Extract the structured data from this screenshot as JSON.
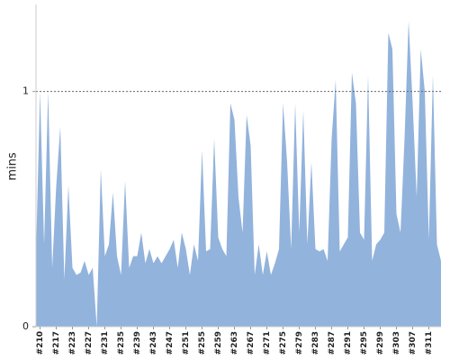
{
  "chart_data": {
    "type": "area",
    "y_label": "mins",
    "categories": [
      null,
      "#210",
      null,
      null,
      null,
      "#217",
      null,
      null,
      null,
      "#223",
      null,
      null,
      null,
      "#227",
      null,
      null,
      null,
      "#231",
      null,
      null,
      null,
      "#235",
      null,
      null,
      null,
      "#239",
      null,
      null,
      null,
      "#243",
      null,
      null,
      null,
      "#247",
      null,
      null,
      null,
      "#251",
      null,
      null,
      null,
      "#255",
      null,
      null,
      null,
      "#259",
      null,
      null,
      null,
      "#263",
      null,
      null,
      null,
      "#267",
      null,
      null,
      null,
      "#271",
      null,
      null,
      null,
      "#275",
      null,
      null,
      null,
      "#279",
      null,
      null,
      null,
      "#283",
      null,
      null,
      null,
      "#287",
      null,
      null,
      null,
      "#291",
      null,
      null,
      null,
      "#295",
      null,
      null,
      null,
      "#299",
      null,
      null,
      null,
      "#303",
      null,
      null,
      null,
      "#307",
      null,
      null,
      null,
      "#311",
      null,
      null,
      null
    ],
    "values": [
      0.3,
      1.0,
      0.35,
      1.0,
      0.25,
      0.6,
      0.85,
      0.2,
      0.6,
      0.25,
      0.22,
      0.23,
      0.28,
      0.22,
      0.25,
      0,
      0.67,
      0.3,
      0.35,
      0.57,
      0.3,
      0.22,
      0.62,
      0.25,
      0.3,
      0.3,
      0.4,
      0.27,
      0.33,
      0.27,
      0.3,
      0.27,
      0.3,
      0.33,
      0.37,
      0.25,
      0.4,
      0.33,
      0.22,
      0.35,
      0.28,
      0.75,
      0.32,
      0.33,
      0.8,
      0.38,
      0.33,
      0.3,
      0.95,
      0.88,
      0.55,
      0.4,
      0.9,
      0.77,
      0.22,
      0.35,
      0.22,
      0.32,
      0.22,
      0.27,
      0.33,
      0.95,
      0.7,
      0.33,
      0.95,
      0.4,
      0.92,
      0.35,
      0.7,
      0.33,
      0.32,
      0.33,
      0.28,
      0.8,
      1.05,
      0.32,
      0.35,
      0.38,
      1.08,
      0.95,
      0.4,
      0.37,
      1.07,
      0.28,
      0.35,
      0.37,
      0.4,
      1.25,
      1.18,
      0.48,
      0.4,
      0.8,
      1.3,
      0.95,
      0.55,
      1.18,
      1.0,
      0.37,
      1.07,
      0.35,
      0.28
    ],
    "color": "#92b3dc",
    "ylim": [
      0,
      1.37
    ],
    "yticks": [
      0,
      1
    ],
    "grid": true
  }
}
